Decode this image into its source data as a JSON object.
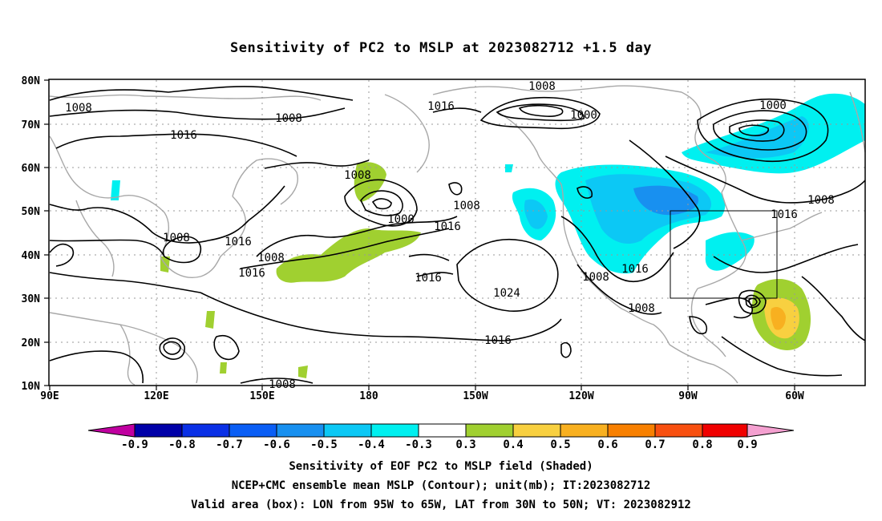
{
  "title": "Sensitivity of PC2 to MSLP at 2023082712 +1.5 day",
  "axes": {
    "lat_labels": [
      "80N",
      "70N",
      "60N",
      "50N",
      "40N",
      "30N",
      "20N",
      "10N"
    ],
    "lon_labels": [
      "90E",
      "120E",
      "150E",
      "180",
      "150W",
      "120W",
      "90W",
      "60W"
    ]
  },
  "colorbar": {
    "ticks": [
      "-0.9",
      "-0.8",
      "-0.7",
      "-0.6",
      "-0.5",
      "-0.4",
      "-0.3",
      "0.3",
      "0.4",
      "0.5",
      "0.6",
      "0.7",
      "0.8",
      "0.9"
    ],
    "low_arrow_color": "#c000a0",
    "high_arrow_color": "#f4a0d0",
    "colors": [
      "#0000a8",
      "#0a30e6",
      "#0a5ef5",
      "#1890f0",
      "#0cc8f5",
      "#00f0f0",
      "#ffffff",
      "#a0d030",
      "#f8d040",
      "#f8b020",
      "#f88000",
      "#f85010",
      "#f00000"
    ]
  },
  "contours": {
    "labels": [
      {
        "text": "1008"
      },
      {
        "text": "1008"
      },
      {
        "text": "1016"
      },
      {
        "text": "1016"
      },
      {
        "text": "1008"
      },
      {
        "text": "1000"
      },
      {
        "text": "1008"
      },
      {
        "text": "1016"
      },
      {
        "text": "1008"
      },
      {
        "text": "1016"
      },
      {
        "text": "1008"
      },
      {
        "text": "1016"
      },
      {
        "text": "1016"
      },
      {
        "text": "1024"
      },
      {
        "text": "1016"
      },
      {
        "text": "1008"
      },
      {
        "text": "1000"
      },
      {
        "text": "1008"
      },
      {
        "text": "1016"
      },
      {
        "text": "1016"
      },
      {
        "text": "1008"
      },
      {
        "text": "1008"
      },
      {
        "text": "1000"
      },
      {
        "text": "1008"
      }
    ]
  },
  "shading_colors": {
    "cyan": "#00f0f0",
    "light_blue": "#0cc8f5",
    "mid_blue": "#1890f0",
    "green": "#a0d030",
    "yellow": "#f8d040",
    "orange": "#f8b020"
  },
  "box": {
    "lon": "95W to 65W",
    "lat": "30N to 50N"
  },
  "captions": {
    "line1": "Sensitivity of EOF PC2 to MSLP field (Shaded)",
    "line2": "NCEP+CMC ensemble mean MSLP (Contour); unit(mb); IT:2023082712",
    "line3": "Valid area (box): LON from 95W to 65W, LAT from 30N to 50N; VT: 2023082912"
  }
}
